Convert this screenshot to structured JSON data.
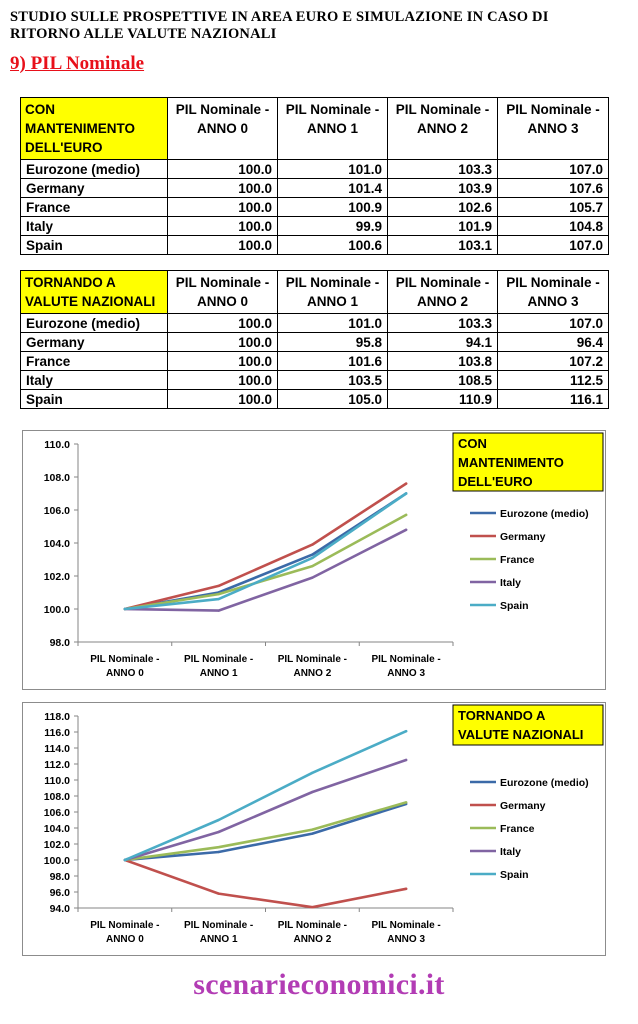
{
  "header": {
    "title": "STUDIO SULLE PROSPETTIVE IN AREA EURO E SIMULAZIONE IN CASO DI RITORNO ALLE VALUTE NAZIONALI",
    "section": "9) PIL Nominale"
  },
  "tables": [
    {
      "title": "CON MANTENIMENTO DELL'EURO",
      "columns": [
        "PIL Nominale - ANNO 0",
        "PIL Nominale - ANNO 1",
        "PIL Nominale - ANNO 2",
        "PIL Nominale - ANNO 3"
      ],
      "rows": [
        {
          "label": "Eurozone (medio)",
          "values": [
            "100.0",
            "101.0",
            "103.3",
            "107.0"
          ]
        },
        {
          "label": "Germany",
          "values": [
            "100.0",
            "101.4",
            "103.9",
            "107.6"
          ]
        },
        {
          "label": "France",
          "values": [
            "100.0",
            "100.9",
            "102.6",
            "105.7"
          ]
        },
        {
          "label": "Italy",
          "values": [
            "100.0",
            "99.9",
            "101.9",
            "104.8"
          ]
        },
        {
          "label": "Spain",
          "values": [
            "100.0",
            "100.6",
            "103.1",
            "107.0"
          ]
        }
      ]
    },
    {
      "title": "TORNANDO A VALUTE NAZIONALI",
      "columns": [
        "PIL Nominale - ANNO 0",
        "PIL Nominale - ANNO 1",
        "PIL Nominale - ANNO 2",
        "PIL Nominale - ANNO 3"
      ],
      "rows": [
        {
          "label": "Eurozone (medio)",
          "values": [
            "100.0",
            "101.0",
            "103.3",
            "107.0"
          ]
        },
        {
          "label": "Germany",
          "values": [
            "100.0",
            "95.8",
            "94.1",
            "96.4"
          ]
        },
        {
          "label": "France",
          "values": [
            "100.0",
            "101.6",
            "103.8",
            "107.2"
          ]
        },
        {
          "label": "Italy",
          "values": [
            "100.0",
            "103.5",
            "108.5",
            "112.5"
          ]
        },
        {
          "label": "Spain",
          "values": [
            "100.0",
            "105.0",
            "110.9",
            "116.1"
          ]
        }
      ]
    }
  ],
  "chart_data": [
    {
      "type": "line",
      "title": "CON MANTENIMENTO DELL'EURO",
      "categories": [
        "PIL Nominale - ANNO 0",
        "PIL Nominale - ANNO 1",
        "PIL Nominale - ANNO 2",
        "PIL Nominale - ANNO 3"
      ],
      "ylim": [
        98,
        110
      ],
      "yticks": [
        "110.0",
        "108.0",
        "106.0",
        "104.0",
        "102.0",
        "100.0",
        "98.0"
      ],
      "legend_position": "right",
      "series": [
        {
          "name": "Eurozone (medio)",
          "color": "#3b6aa8",
          "values": [
            100.0,
            101.0,
            103.3,
            107.0
          ]
        },
        {
          "name": "Germany",
          "color": "#c0504d",
          "values": [
            100.0,
            101.4,
            103.9,
            107.6
          ]
        },
        {
          "name": "France",
          "color": "#9bbb59",
          "values": [
            100.0,
            100.9,
            102.6,
            105.7
          ]
        },
        {
          "name": "Italy",
          "color": "#8064a2",
          "values": [
            100.0,
            99.9,
            101.9,
            104.8
          ]
        },
        {
          "name": "Spain",
          "color": "#4bacc6",
          "values": [
            100.0,
            100.6,
            103.1,
            107.0
          ]
        }
      ]
    },
    {
      "type": "line",
      "title": "TORNANDO A VALUTE NAZIONALI",
      "categories": [
        "PIL Nominale - ANNO 0",
        "PIL Nominale - ANNO 1",
        "PIL Nominale - ANNO 2",
        "PIL Nominale - ANNO 3"
      ],
      "ylim": [
        94,
        118
      ],
      "yticks": [
        "118.0",
        "116.0",
        "114.0",
        "112.0",
        "110.0",
        "108.0",
        "106.0",
        "104.0",
        "102.0",
        "100.0",
        "98.0",
        "96.0",
        "94.0"
      ],
      "legend_position": "right",
      "series": [
        {
          "name": "Eurozone (medio)",
          "color": "#3b6aa8",
          "values": [
            100.0,
            101.0,
            103.3,
            107.0
          ]
        },
        {
          "name": "Germany",
          "color": "#c0504d",
          "values": [
            100.0,
            95.8,
            94.1,
            96.4
          ]
        },
        {
          "name": "France",
          "color": "#9bbb59",
          "values": [
            100.0,
            101.6,
            103.8,
            107.2
          ]
        },
        {
          "name": "Italy",
          "color": "#8064a2",
          "values": [
            100.0,
            103.5,
            108.5,
            112.5
          ]
        },
        {
          "name": "Spain",
          "color": "#4bacc6",
          "values": [
            100.0,
            105.0,
            110.9,
            116.1
          ]
        }
      ]
    }
  ],
  "footer": {
    "text": "scenarieconomici.it",
    "color": "#b23cb4"
  }
}
